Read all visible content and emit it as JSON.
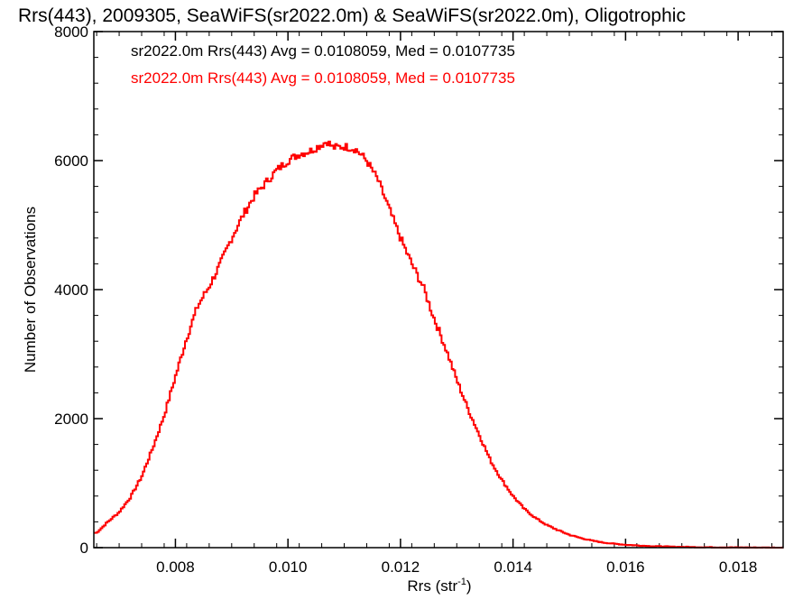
{
  "chart_data": {
    "type": "line",
    "title": "Rrs(443), 2009305, SeaWiFS(sr2022.0m) & SeaWiFS(sr2022.0m), Oligotrophic",
    "xlabel_main": "Rrs (str",
    "xlabel_sup": "-1",
    "xlabel_close": ")",
    "ylabel": "Number of Observations",
    "xlim": [
      0.00655,
      0.0188
    ],
    "ylim": [
      0,
      8000
    ],
    "xticks": [
      "0.008",
      "0.010",
      "0.012",
      "0.014",
      "0.016",
      "0.018"
    ],
    "yticks": [
      "0",
      "2000",
      "4000",
      "6000",
      "8000"
    ],
    "annotations": [
      {
        "text": "sr2022.0m Rrs(443) Avg = 0.0108059, Med = 0.0107735",
        "color": "#000000"
      },
      {
        "text": "sr2022.0m Rrs(443) Avg = 0.0108059, Med = 0.0107735",
        "color": "#ff0000"
      }
    ],
    "series": [
      {
        "color": "#ff0000",
        "x": [
          0.0066,
          0.0068,
          0.007,
          0.0072,
          0.0074,
          0.0076,
          0.0078,
          0.008,
          0.0082,
          0.0084,
          0.0086,
          0.0088,
          0.009,
          0.0092,
          0.0094,
          0.0096,
          0.0098,
          0.01,
          0.0102,
          0.0104,
          0.0106,
          0.0107,
          0.0108,
          0.011,
          0.0112,
          0.0114,
          0.0116,
          0.0118,
          0.012,
          0.0122,
          0.0124,
          0.0126,
          0.0128,
          0.013,
          0.0132,
          0.0134,
          0.0136,
          0.0138,
          0.014,
          0.0142,
          0.0144,
          0.0146,
          0.0148,
          0.015,
          0.0152,
          0.0154,
          0.0156,
          0.0158,
          0.016,
          0.0162,
          0.0164,
          0.0166,
          0.0168,
          0.017,
          0.0172,
          0.0174,
          0.0176,
          0.0178,
          0.018,
          0.0182,
          0.0184,
          0.0186,
          0.0188
        ],
        "y": [
          230,
          400,
          550,
          780,
          1100,
          1550,
          2050,
          2650,
          3250,
          3750,
          4050,
          4400,
          4800,
          5150,
          5450,
          5650,
          5850,
          6000,
          6100,
          6150,
          6250,
          6300,
          6200,
          6220,
          6180,
          6000,
          5700,
          5250,
          4800,
          4400,
          4050,
          3550,
          3100,
          2600,
          2150,
          1750,
          1350,
          1050,
          800,
          600,
          460,
          350,
          270,
          200,
          150,
          110,
          80,
          60,
          45,
          35,
          26,
          20,
          15,
          12,
          9,
          7,
          5,
          4,
          3,
          2,
          2,
          1,
          1
        ]
      }
    ]
  }
}
